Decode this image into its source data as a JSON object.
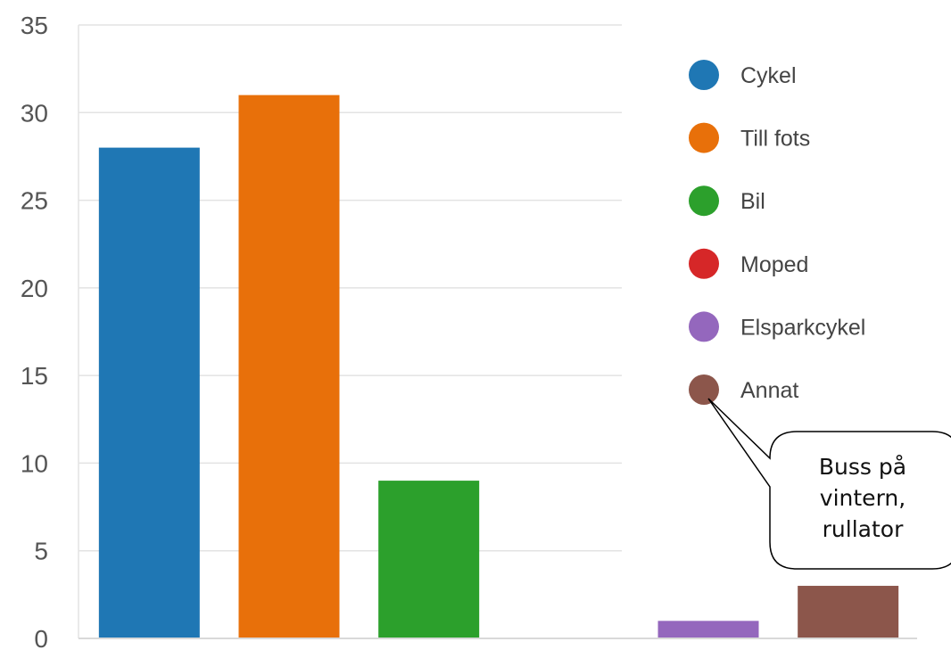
{
  "chart_data": {
    "type": "bar",
    "categories": [
      "Cykel",
      "Till fots",
      "Bil",
      "Moped",
      "Elsparkcykel",
      "Annat"
    ],
    "values": [
      28,
      31,
      9,
      0,
      1,
      3
    ],
    "colors": [
      "#1f77b4",
      "#e8700a",
      "#2ca02c",
      "#d62728",
      "#9467bd",
      "#8c564b"
    ],
    "ylim": [
      0,
      35
    ],
    "yticks": [
      0,
      5,
      10,
      15,
      20,
      25,
      30,
      35
    ],
    "grid": true,
    "legend": "right",
    "annotation": {
      "target": "Annat",
      "lines": [
        "Buss på",
        "vintern,",
        "rullator"
      ]
    }
  }
}
